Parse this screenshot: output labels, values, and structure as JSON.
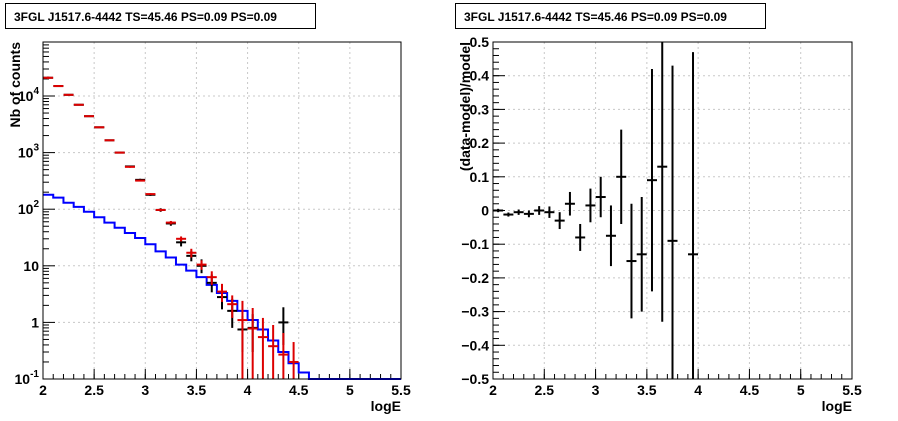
{
  "chart_data": [
    {
      "type": "line",
      "title": "3FGL J1517.6-4442 TS=45.46 PS=0.09 PS=0.09",
      "xlabel": "logE",
      "ylabel": "Nb of counts",
      "xlim": [
        2,
        5.5
      ],
      "ylim": [
        0.1,
        90000
      ],
      "yscale": "log",
      "grid": true,
      "x_ticks": [
        "2",
        "2.5",
        "3",
        "3.5",
        "4",
        "4.5",
        "5",
        "5.5"
      ],
      "y_ticks": [
        {
          "value": 0.1,
          "base": "10",
          "exp": "-1"
        },
        {
          "value": 1,
          "base": "1",
          "exp": ""
        },
        {
          "value": 10,
          "base": "10",
          "exp": ""
        },
        {
          "value": 100,
          "base": "10",
          "exp": "2"
        },
        {
          "value": 1000,
          "base": "10",
          "exp": "3"
        },
        {
          "value": 10000,
          "base": "10",
          "exp": "4"
        }
      ],
      "series": [
        {
          "color": "#0000ff",
          "style": "step",
          "edges": [
            2.0,
            2.1,
            2.2,
            2.3,
            2.4,
            2.5,
            2.6,
            2.7,
            2.8,
            2.9,
            3.0,
            3.1,
            3.2,
            3.3,
            3.4,
            3.5,
            3.6,
            3.7,
            3.8,
            3.9,
            4.0,
            4.1,
            4.2,
            4.3,
            4.4,
            4.5,
            4.6,
            4.7,
            4.8,
            4.9,
            5.0,
            5.1,
            5.2,
            5.3,
            5.4,
            5.5
          ],
          "values": [
            180,
            160,
            130,
            110,
            90,
            72,
            58,
            47,
            38,
            31,
            24,
            18,
            14,
            10.5,
            8.2,
            6.3,
            4.6,
            3.3,
            2.4,
            1.6,
            1.1,
            0.75,
            0.48,
            0.3,
            0.19,
            0.13,
            0.1,
            0.1,
            0.1,
            0.1,
            0.1,
            0.1,
            0.1,
            0.1,
            0.1
          ]
        },
        {
          "color": "#dd0000",
          "style": "errorbar",
          "x": [
            2.05,
            2.15,
            2.25,
            2.35,
            2.45,
            2.55,
            2.65,
            2.75,
            2.85,
            2.95,
            3.05,
            3.15,
            3.25,
            3.35,
            3.45,
            3.55,
            3.65,
            3.75,
            3.85,
            3.95,
            4.05,
            4.15,
            4.25,
            4.35,
            4.45
          ],
          "y": [
            21000,
            15000,
            10500,
            7000,
            4400,
            2800,
            1650,
            1000,
            560,
            320,
            185,
            97,
            58,
            30,
            17,
            10.5,
            6.3,
            3.5,
            2.1,
            1.1,
            0.78,
            0.55,
            0.38,
            0.27,
            0.2
          ],
          "ylo": [
            20000,
            14500,
            10200,
            6800,
            4300,
            2750,
            1600,
            970,
            540,
            310,
            178,
            92,
            54,
            27,
            14,
            8.5,
            4.6,
            2.3,
            1.2,
            0.1,
            0.1,
            0.1,
            0.1,
            0.1,
            0.1
          ],
          "yhi": [
            22000,
            15500,
            10800,
            7200,
            4500,
            2850,
            1700,
            1030,
            580,
            330,
            192,
            102,
            62,
            33,
            20,
            12.5,
            8.0,
            4.8,
            3.0,
            2.4,
            1.8,
            1.2,
            0.9,
            0.65,
            0.45
          ]
        },
        {
          "color": "#000000",
          "style": "errorbar",
          "x": [
            2.05,
            2.15,
            2.25,
            2.35,
            2.45,
            2.55,
            2.65,
            2.75,
            2.85,
            2.95,
            3.05,
            3.15,
            3.25,
            3.35,
            3.45,
            3.55,
            3.65,
            3.75,
            3.85,
            3.95,
            4.05,
            4.35
          ],
          "y": [
            21000,
            15000,
            10500,
            7000,
            4400,
            2800,
            1650,
            1000,
            570,
            330,
            180,
            97,
            56,
            26,
            15,
            10,
            5,
            2.8,
            1.6,
            0.75,
            0.8,
            1
          ],
          "ylo": [
            20000,
            14500,
            10200,
            6800,
            4300,
            2750,
            1600,
            970,
            550,
            315,
            172,
            90,
            51,
            22,
            12,
            7.4,
            3.4,
            1.7,
            0.8,
            0.3,
            0.3,
            0.4
          ],
          "yhi": [
            22000,
            15500,
            10800,
            7200,
            4500,
            2850,
            1700,
            1030,
            590,
            345,
            188,
            104,
            61,
            30,
            18.5,
            13,
            7.0,
            4.2,
            2.6,
            1.3,
            1.4,
            1.85
          ]
        }
      ]
    },
    {
      "type": "scatter",
      "title": "3FGL J1517.6-4442 TS=45.46 PS=0.09 PS=0.09",
      "xlabel": "logE",
      "ylabel": "(data-model)/model",
      "xlim": [
        2,
        5.5
      ],
      "ylim": [
        -0.5,
        0.5
      ],
      "grid": true,
      "x_ticks": [
        "2",
        "2.5",
        "3",
        "3.5",
        "4",
        "4.5",
        "5",
        "5.5"
      ],
      "y_ticks": [
        "−0.5",
        "−0.4",
        "−0.3",
        "−0.2",
        "−0.1",
        "0",
        "0.1",
        "0.2",
        "0.3",
        "0.4",
        "0.5"
      ],
      "series": [
        {
          "color": "#000000",
          "style": "errorbar",
          "x": [
            2.05,
            2.15,
            2.25,
            2.35,
            2.45,
            2.55,
            2.65,
            2.75,
            2.85,
            2.95,
            3.05,
            3.15,
            3.25,
            3.35,
            3.45,
            3.55,
            3.65,
            3.75,
            3.95
          ],
          "y": [
            0.0,
            -0.012,
            -0.005,
            -0.01,
            0.0,
            -0.005,
            -0.03,
            0.02,
            -0.08,
            0.015,
            0.04,
            -0.075,
            0.1,
            -0.15,
            -0.13,
            0.09,
            0.13,
            -0.09,
            -0.13
          ],
          "yerr": [
            0.005,
            0.006,
            0.008,
            0.01,
            0.013,
            0.017,
            0.025,
            0.035,
            0.04,
            0.05,
            0.06,
            0.09,
            0.14,
            0.17,
            0.17,
            0.33,
            0.46,
            0.52,
            0.6
          ]
        }
      ]
    }
  ]
}
